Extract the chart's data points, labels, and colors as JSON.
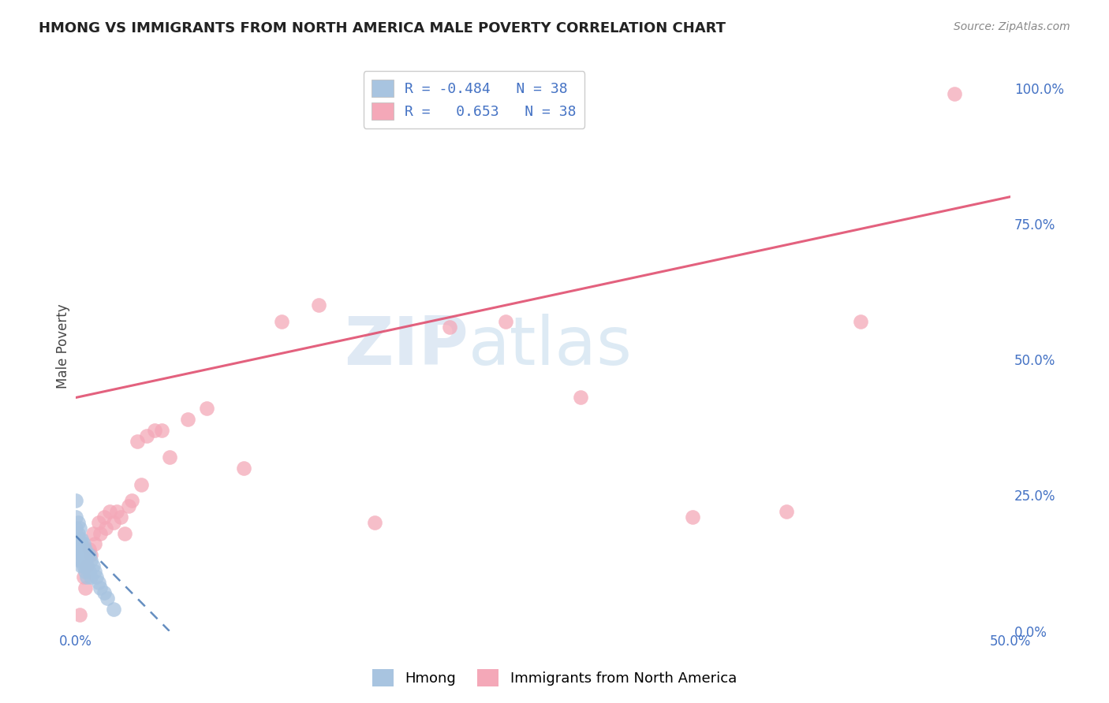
{
  "title": "HMONG VS IMMIGRANTS FROM NORTH AMERICA MALE POVERTY CORRELATION CHART",
  "source": "Source: ZipAtlas.com",
  "ylabel": "Male Poverty",
  "xlim": [
    0.0,
    0.5
  ],
  "ylim": [
    0.0,
    1.05
  ],
  "grid_color": "#cccccc",
  "background_color": "#ffffff",
  "watermark_zip": "ZIP",
  "watermark_atlas": "atlas",
  "legend_r_hmong": "-0.484",
  "legend_r_immigrants": "0.653",
  "legend_n": "38",
  "hmong_color": "#a8c4e0",
  "immigrants_color": "#f4a8b8",
  "hmong_line_color": "#4a7ab5",
  "immigrants_line_color": "#e05070",
  "title_fontsize": 13,
  "source_fontsize": 10,
  "hmong_scatter_x": [
    0.0,
    0.0,
    0.0,
    0.001,
    0.001,
    0.001,
    0.001,
    0.002,
    0.002,
    0.002,
    0.002,
    0.002,
    0.003,
    0.003,
    0.003,
    0.003,
    0.003,
    0.004,
    0.004,
    0.004,
    0.005,
    0.005,
    0.005,
    0.006,
    0.006,
    0.006,
    0.007,
    0.007,
    0.008,
    0.008,
    0.009,
    0.01,
    0.011,
    0.012,
    0.013,
    0.015,
    0.017,
    0.02
  ],
  "hmong_scatter_y": [
    0.24,
    0.21,
    0.19,
    0.2,
    0.18,
    0.17,
    0.15,
    0.19,
    0.17,
    0.16,
    0.15,
    0.13,
    0.17,
    0.16,
    0.14,
    0.13,
    0.12,
    0.16,
    0.14,
    0.12,
    0.15,
    0.13,
    0.11,
    0.14,
    0.12,
    0.1,
    0.14,
    0.11,
    0.13,
    0.1,
    0.12,
    0.11,
    0.1,
    0.09,
    0.08,
    0.07,
    0.06,
    0.04
  ],
  "immigrants_scatter_x": [
    0.002,
    0.004,
    0.005,
    0.006,
    0.007,
    0.008,
    0.009,
    0.01,
    0.012,
    0.013,
    0.015,
    0.016,
    0.018,
    0.02,
    0.022,
    0.024,
    0.026,
    0.028,
    0.03,
    0.033,
    0.035,
    0.038,
    0.042,
    0.046,
    0.05,
    0.06,
    0.07,
    0.09,
    0.11,
    0.13,
    0.16,
    0.2,
    0.23,
    0.27,
    0.33,
    0.38,
    0.42,
    0.47
  ],
  "immigrants_scatter_y": [
    0.03,
    0.1,
    0.08,
    0.12,
    0.15,
    0.14,
    0.18,
    0.16,
    0.2,
    0.18,
    0.21,
    0.19,
    0.22,
    0.2,
    0.22,
    0.21,
    0.18,
    0.23,
    0.24,
    0.35,
    0.27,
    0.36,
    0.37,
    0.37,
    0.32,
    0.39,
    0.41,
    0.3,
    0.57,
    0.6,
    0.2,
    0.56,
    0.57,
    0.43,
    0.21,
    0.22,
    0.57,
    0.99
  ],
  "immigrants_line_x0": 0.0,
  "immigrants_line_y0": 0.43,
  "immigrants_line_x1": 0.5,
  "immigrants_line_y1": 0.8,
  "hmong_line_x0": 0.0,
  "hmong_line_y0": 0.175,
  "hmong_line_x1": 0.05,
  "hmong_line_y1": 0.0
}
